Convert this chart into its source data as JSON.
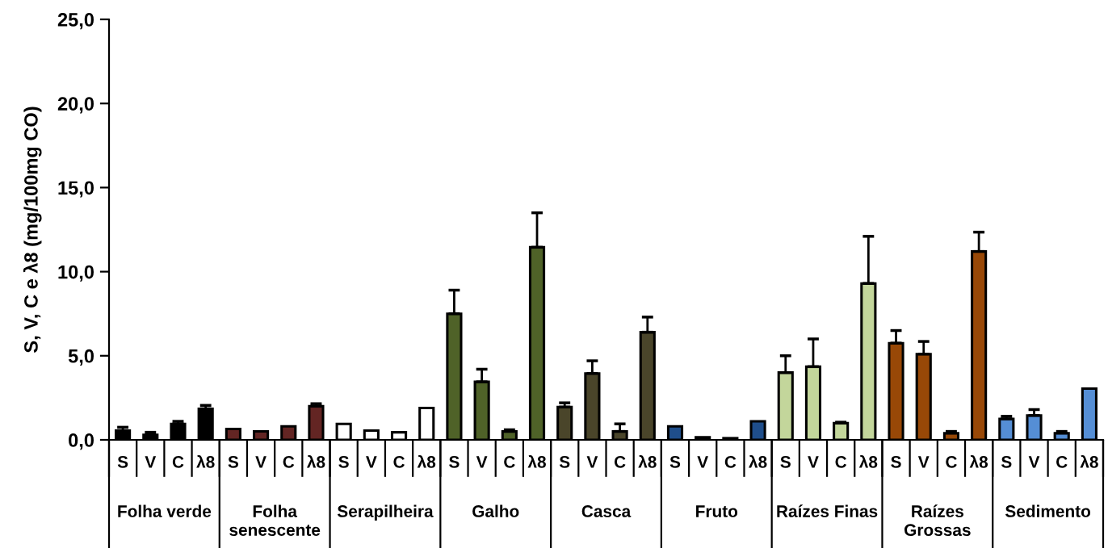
{
  "chart_data": {
    "type": "bar",
    "ylabel": "S, V, C e λ8 (mg/100mg CO)",
    "categories": [
      "S",
      "V",
      "C",
      "λ8",
      "S",
      "V",
      "C",
      "λ8",
      "S",
      "V",
      "C",
      "λ8",
      "S",
      "V",
      "C",
      "λ8",
      "S",
      "V",
      "C",
      "λ8",
      "S",
      "V",
      "C",
      "λ8",
      "S",
      "V",
      "C",
      "λ8",
      "S",
      "V",
      "C",
      "λ8",
      "S",
      "V",
      "C",
      "λ8"
    ],
    "values": [
      0.55,
      0.3,
      0.95,
      1.85,
      0.65,
      0.5,
      0.8,
      2.0,
      0.95,
      0.55,
      0.45,
      1.9,
      7.5,
      3.45,
      0.5,
      11.45,
      1.95,
      3.95,
      0.5,
      6.4,
      0.8,
      0.15,
      0.1,
      1.1,
      4.0,
      4.35,
      1.0,
      9.3,
      5.75,
      5.1,
      0.4,
      11.2,
      1.25,
      1.45,
      0.4,
      3.05
    ],
    "colors": [
      "#000000",
      "#000000",
      "#000000",
      "#000000",
      "#632523",
      "#632523",
      "#632523",
      "#632523",
      "#ffffff",
      "#ffffff",
      "#ffffff",
      "#ffffff",
      "#4f6228",
      "#4f6228",
      "#4f6228",
      "#4f6228",
      "#4a452a",
      "#4a452a",
      "#4a452a",
      "#4a452a",
      "#1f4e8b",
      "#1f4e8b",
      "#1f4e8b",
      "#1f4e8b",
      "#c3d69b",
      "#c3d69b",
      "#c3d69b",
      "#c3d69b",
      "#984807",
      "#984807",
      "#984807",
      "#984807",
      "#558ed5",
      "#558ed5",
      "#558ed5",
      "#558ed5"
    ],
    "errors": [
      [
        0.55,
        0.75
      ],
      [
        0.3,
        0.45
      ],
      [
        0.95,
        1.1
      ],
      [
        1.85,
        2.05
      ],
      null,
      null,
      null,
      [
        2.0,
        2.15
      ],
      null,
      null,
      null,
      null,
      [
        7.5,
        8.9
      ],
      [
        3.45,
        4.2
      ],
      [
        0.5,
        0.6
      ],
      [
        11.45,
        13.5
      ],
      [
        1.95,
        2.2
      ],
      [
        3.95,
        4.7
      ],
      [
        0.5,
        0.95
      ],
      [
        6.4,
        7.3
      ],
      null,
      null,
      null,
      null,
      [
        4.0,
        5.0
      ],
      [
        4.35,
        6.0
      ],
      [
        1.0,
        1.05
      ],
      [
        9.3,
        12.1
      ],
      [
        5.75,
        6.5
      ],
      [
        5.1,
        5.85
      ],
      [
        0.4,
        0.5
      ],
      [
        11.2,
        12.35
      ],
      [
        1.25,
        1.4
      ],
      [
        1.45,
        1.8
      ],
      [
        0.4,
        0.5
      ],
      null
    ],
    "ylim": [
      0,
      25
    ],
    "yticks": [
      {
        "value": 0,
        "label": "0,0"
      },
      {
        "value": 5,
        "label": "5,0"
      },
      {
        "value": 10,
        "label": "10,0"
      },
      {
        "value": 15,
        "label": "15,0"
      },
      {
        "value": 20,
        "label": "20,0"
      },
      {
        "value": 25,
        "label": "25,0"
      }
    ],
    "annotations": [
      "Folha verde",
      "Folha senescente",
      "Serapilheira",
      "Galho",
      "Casca",
      "Fruto",
      "Raízes Finas",
      "Raízes Grossas",
      "Sedimento"
    ]
  }
}
